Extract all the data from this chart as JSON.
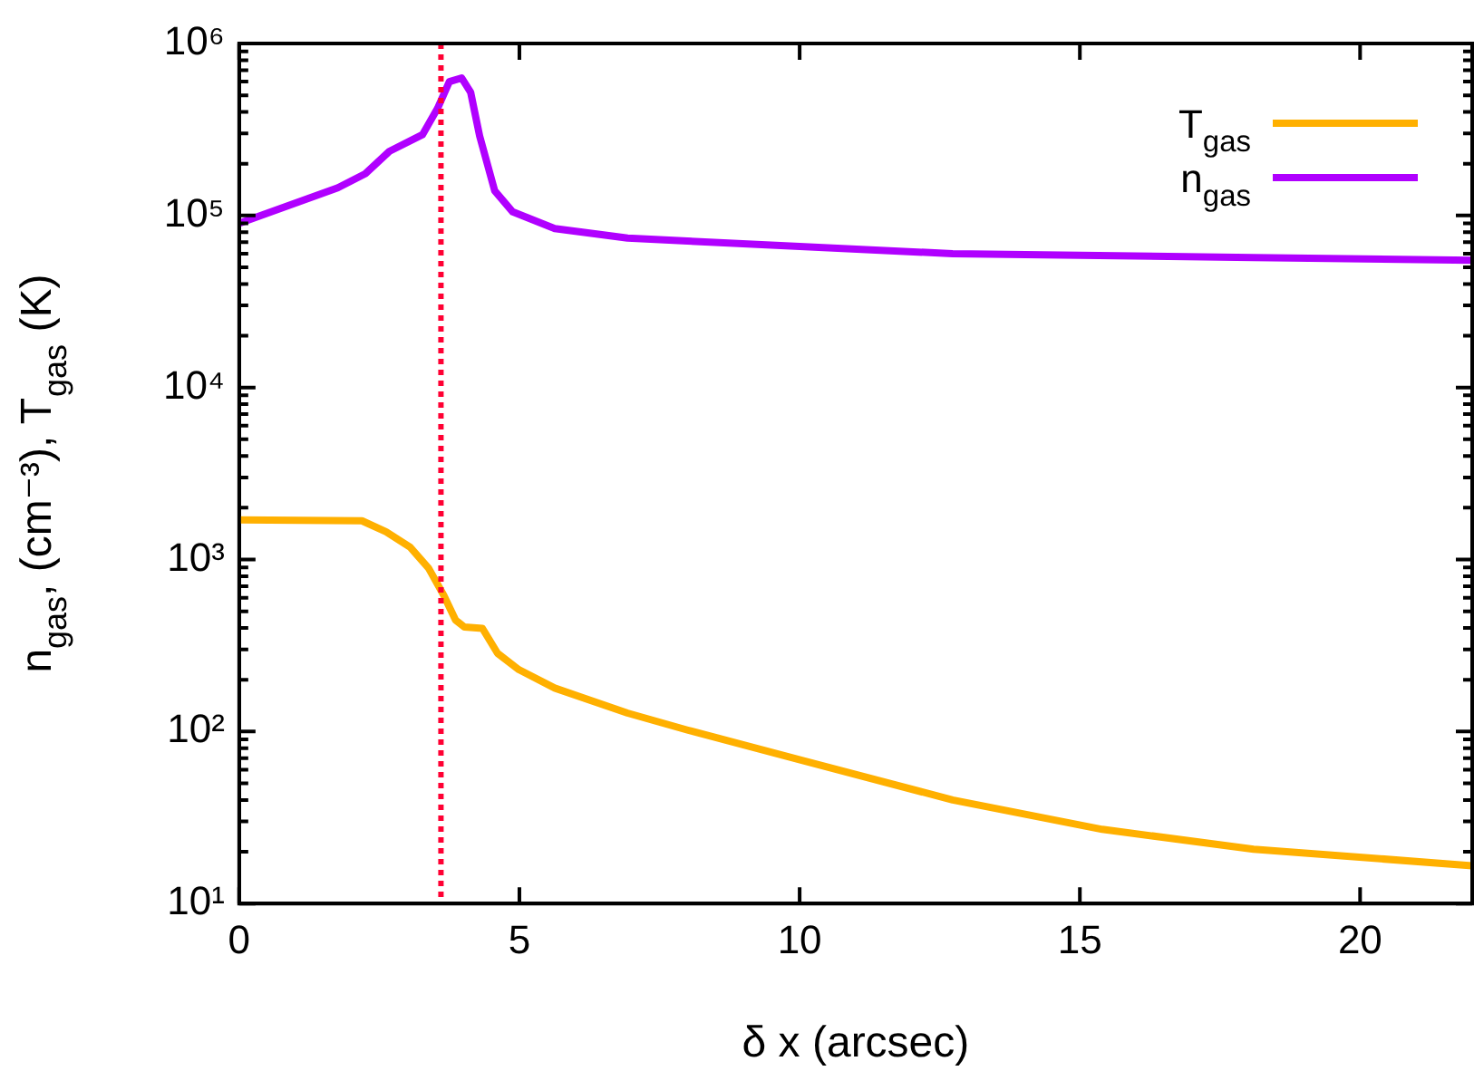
{
  "chart_data": {
    "type": "line",
    "xlabel": "δ x (arcsec)",
    "ylabel": "n$_{gas}$, (cm⁻³), T$_{gas}$ (K)",
    "log": "y",
    "xlim": [
      0,
      22
    ],
    "xticks": [
      0,
      5,
      10,
      15,
      20
    ],
    "ylim": [
      10,
      1000000
    ],
    "yticks": [
      {
        "value": 10,
        "label": "10¹"
      },
      {
        "value": 20,
        "label": null
      },
      {
        "value": 30,
        "label": null
      },
      {
        "value": 40,
        "label": null
      },
      {
        "value": 50,
        "label": null
      },
      {
        "value": 60,
        "label": null
      },
      {
        "value": 70,
        "label": null
      },
      {
        "value": 80,
        "label": null
      },
      {
        "value": 90,
        "label": null
      },
      {
        "value": 100,
        "label": "10²"
      },
      {
        "value": 200,
        "label": null
      },
      {
        "value": 300,
        "label": null
      },
      {
        "value": 400,
        "label": null
      },
      {
        "value": 500,
        "label": null
      },
      {
        "value": 600,
        "label": null
      },
      {
        "value": 700,
        "label": null
      },
      {
        "value": 800,
        "label": null
      },
      {
        "value": 900,
        "label": null
      },
      {
        "value": 1000,
        "label": "10³"
      },
      {
        "value": 2000,
        "label": null
      },
      {
        "value": 3000,
        "label": null
      },
      {
        "value": 4000,
        "label": null
      },
      {
        "value": 5000,
        "label": null
      },
      {
        "value": 6000,
        "label": null
      },
      {
        "value": 7000,
        "label": null
      },
      {
        "value": 8000,
        "label": null
      },
      {
        "value": 9000,
        "label": null
      },
      {
        "value": 10000,
        "label": "10⁴"
      },
      {
        "value": 20000,
        "label": null
      },
      {
        "value": 30000,
        "label": null
      },
      {
        "value": 40000,
        "label": null
      },
      {
        "value": 50000,
        "label": null
      },
      {
        "value": 60000,
        "label": null
      },
      {
        "value": 70000,
        "label": null
      },
      {
        "value": 80000,
        "label": null
      },
      {
        "value": 90000,
        "label": null
      },
      {
        "value": 100000,
        "label": "10⁵"
      },
      {
        "value": 200000,
        "label": null
      },
      {
        "value": 300000,
        "label": null
      },
      {
        "value": 400000,
        "label": null
      },
      {
        "value": 500000,
        "label": null
      },
      {
        "value": 600000,
        "label": null
      },
      {
        "value": 700000,
        "label": null
      },
      {
        "value": 800000,
        "label": null
      },
      {
        "value": 900000,
        "label": null
      },
      {
        "value": 1000000,
        "label": "10⁶"
      }
    ],
    "legend": "top right",
    "marker": "none",
    "line_style": "solid",
    "series": [
      {
        "name": "T$_{gas}$",
        "color": "#ffb000",
        "x": [
          0,
          2.19,
          2.62,
          3.05,
          3.38,
          3.65,
          3.86,
          4.02,
          4.34,
          4.61,
          4.99,
          5.63,
          6.93,
          8,
          10.04,
          12.73,
          15.4,
          18.1,
          22
        ],
        "values": [
          1700,
          1680,
          1450,
          1180,
          890,
          620,
          445,
          405,
          398,
          285,
          229,
          179,
          128,
          102,
          68,
          40,
          27,
          20.7,
          16.6
        ]
      },
      {
        "name": "n$_{gas}$",
        "color": "#b000ff",
        "x": [
          0,
          1.76,
          2.25,
          2.68,
          3.27,
          3.54,
          3.75,
          3.97,
          4.13,
          4.29,
          4.56,
          4.88,
          5.63,
          6.93,
          8,
          12.73,
          18.1,
          22
        ],
        "values": [
          90000,
          145000,
          175000,
          236000,
          295000,
          420000,
          600000,
          630000,
          520000,
          290000,
          139000,
          105000,
          84000,
          74000,
          71000,
          60000,
          57000,
          55000
        ]
      }
    ],
    "ref_lines": [
      {
        "axis": "x",
        "value": 3.6,
        "color": "#ff0033",
        "line_style": "dotted"
      }
    ]
  }
}
